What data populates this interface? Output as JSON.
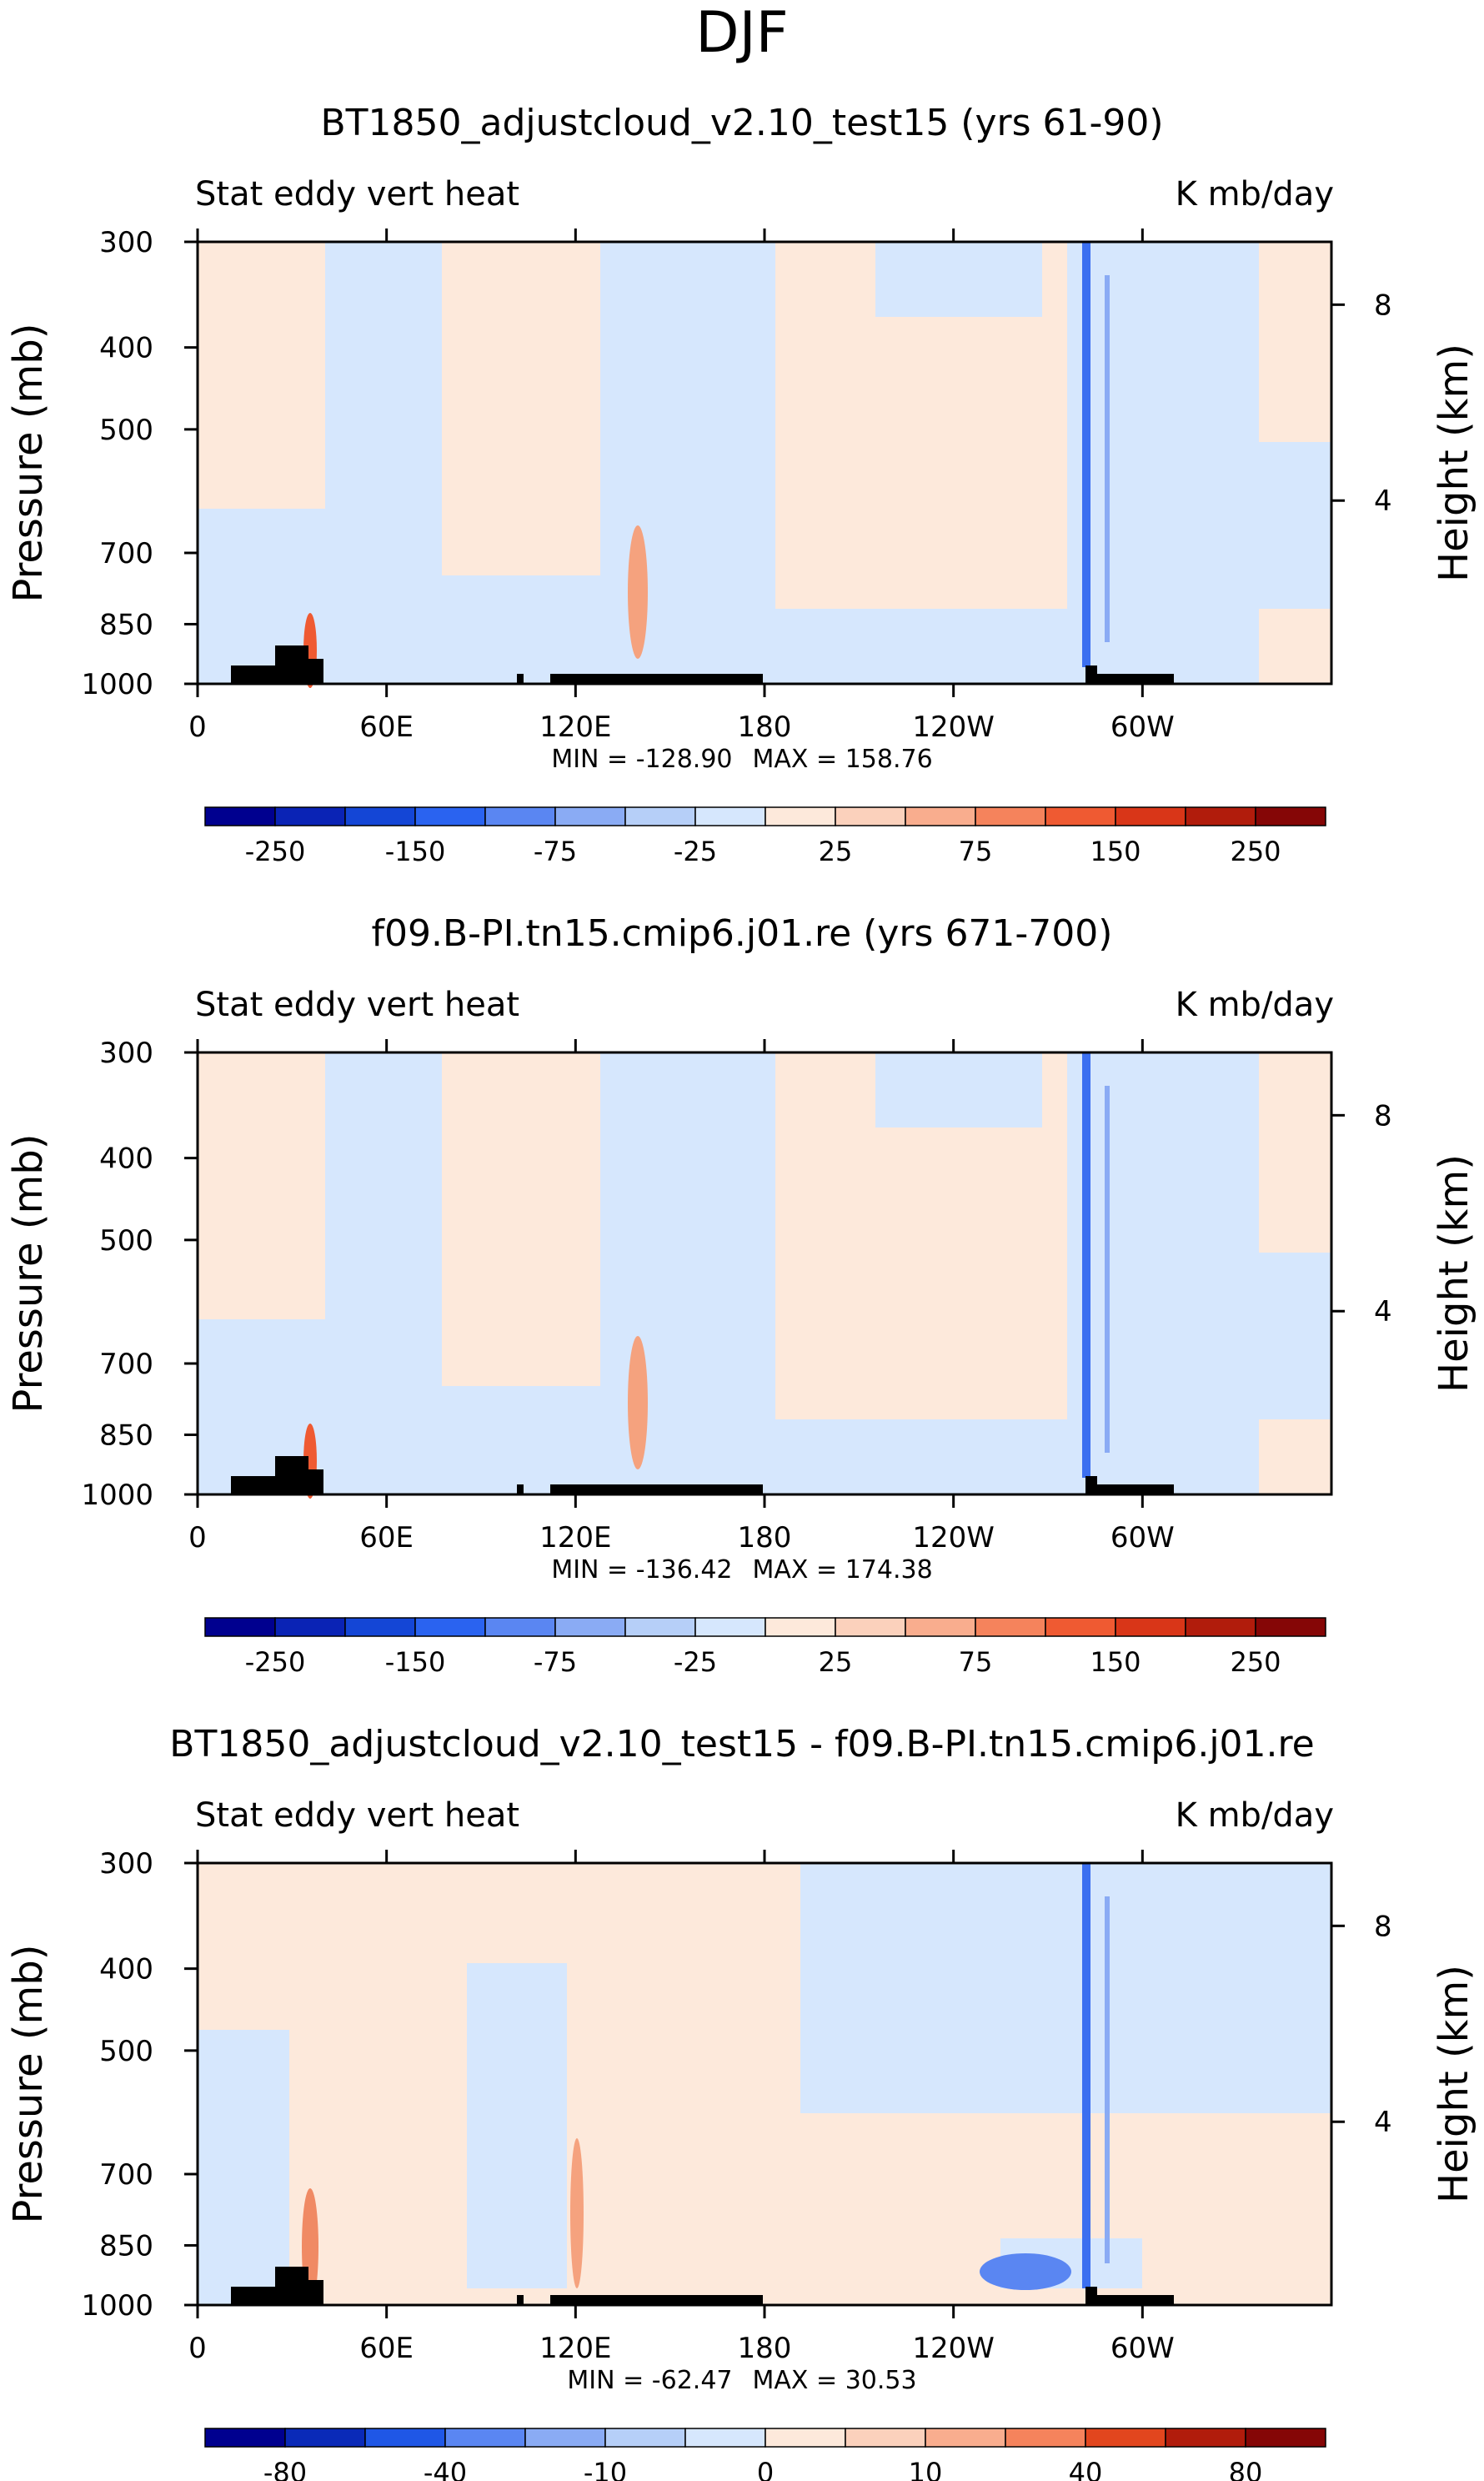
{
  "figure": {
    "season": "DJF"
  },
  "chart_data": [
    {
      "type": "heatmap",
      "title": "BT1850_adjustcloud_v2.10_test15 (yrs 61-90)",
      "left_label": "Stat eddy vert heat",
      "right_label": "K mb/day",
      "xlabel": "",
      "ylabel": "Pressure (mb)",
      "y2label": "Height (km)",
      "x_ticks": [
        "0",
        "60E",
        "120E",
        "180",
        "120W",
        "60W"
      ],
      "x_range": [
        0,
        360
      ],
      "y_ticks": [
        "300",
        "400",
        "500",
        "700",
        "850",
        "1000"
      ],
      "y_range": [
        1000,
        300
      ],
      "y2_ticks": [
        "8",
        "4"
      ],
      "stats": {
        "min_label": "MIN = ",
        "min": "-128.90",
        "max_label": "MAX = ",
        "max": "158.76"
      },
      "colorbar": {
        "levels": [
          "-250",
          "-150",
          "-75",
          "-25",
          "25",
          "75",
          "150",
          "250"
        ]
      }
    },
    {
      "type": "heatmap",
      "title": "f09.B-PI.tn15.cmip6.j01.re (yrs 671-700)",
      "left_label": "Stat eddy vert heat",
      "right_label": "K mb/day",
      "xlabel": "",
      "ylabel": "Pressure (mb)",
      "y2label": "Height (km)",
      "x_ticks": [
        "0",
        "60E",
        "120E",
        "180",
        "120W",
        "60W"
      ],
      "x_range": [
        0,
        360
      ],
      "y_ticks": [
        "300",
        "400",
        "500",
        "700",
        "850",
        "1000"
      ],
      "y_range": [
        1000,
        300
      ],
      "y2_ticks": [
        "8",
        "4"
      ],
      "stats": {
        "min_label": "MIN = ",
        "min": "-136.42",
        "max_label": "MAX = ",
        "max": "174.38"
      },
      "colorbar": {
        "levels": [
          "-250",
          "-150",
          "-75",
          "-25",
          "25",
          "75",
          "150",
          "250"
        ]
      }
    },
    {
      "type": "heatmap",
      "title": "BT1850_adjustcloud_v2.10_test15 - f09.B-PI.tn15.cmip6.j01.re",
      "left_label": "Stat eddy vert heat",
      "right_label": "K mb/day",
      "xlabel": "",
      "ylabel": "Pressure (mb)",
      "y2label": "Height (km)",
      "x_ticks": [
        "0",
        "60E",
        "120E",
        "180",
        "120W",
        "60W"
      ],
      "x_range": [
        0,
        360
      ],
      "y_ticks": [
        "300",
        "400",
        "500",
        "700",
        "850",
        "1000"
      ],
      "y_range": [
        1000,
        300
      ],
      "y2_ticks": [
        "8",
        "4"
      ],
      "stats": {
        "min_label": "MIN = ",
        "min": "-62.47",
        "max_label": "MAX = ",
        "max": "30.53"
      },
      "colorbar": {
        "levels": [
          "-80",
          "-40",
          "-10",
          "0",
          "10",
          "40",
          "80"
        ]
      }
    }
  ],
  "colors": {
    "colorbar_16": [
      "#00008f",
      "#0a23b5",
      "#1446d6",
      "#2a63f0",
      "#5a86f2",
      "#8aabf4",
      "#b6cff8",
      "#d6e7fd",
      "#fde9db",
      "#fbd1bc",
      "#f9ad8e",
      "#f5835c",
      "#ef5a32",
      "#d93618",
      "#b11c0c",
      "#850606"
    ],
    "colorbar_14": [
      "#00008f",
      "#0a2ab8",
      "#1f57e6",
      "#5a86f2",
      "#8aabf4",
      "#b6cff8",
      "#d6e7fd",
      "#fde9db",
      "#fbd1bc",
      "#f9ad8e",
      "#f5835c",
      "#e2461e",
      "#b11c0c",
      "#850606"
    ],
    "field_pos": "#fde9db",
    "field_neg": "#d6e7fd",
    "topography": "#000000"
  }
}
